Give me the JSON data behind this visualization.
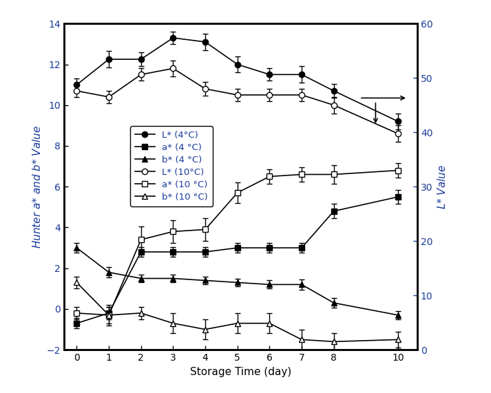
{
  "x_days": [
    0,
    1,
    2,
    3,
    4,
    5,
    6,
    7,
    8,
    10
  ],
  "L4_y": [
    11.0,
    12.25,
    12.25,
    13.3,
    13.1,
    12.0,
    11.5,
    11.5,
    10.7,
    9.2
  ],
  "L4_err": [
    0.3,
    0.4,
    0.35,
    0.3,
    0.4,
    0.4,
    0.3,
    0.4,
    0.35,
    0.4
  ],
  "a4_y": [
    -0.7,
    -0.2,
    2.8,
    2.8,
    2.8,
    3.0,
    3.0,
    3.0,
    4.8,
    5.5
  ],
  "a4_err": [
    0.25,
    0.3,
    0.25,
    0.25,
    0.25,
    0.25,
    0.25,
    0.25,
    0.35,
    0.35
  ],
  "b4_y": [
    3.0,
    1.8,
    1.5,
    1.5,
    1.4,
    1.3,
    1.2,
    1.2,
    0.3,
    -0.3
  ],
  "b4_err": [
    0.25,
    0.25,
    0.2,
    0.2,
    0.2,
    0.2,
    0.2,
    0.25,
    0.25,
    0.2
  ],
  "L10_y": [
    10.7,
    10.4,
    11.5,
    11.8,
    10.8,
    10.5,
    10.5,
    10.5,
    10.0,
    8.6
  ],
  "L10_err": [
    0.3,
    0.3,
    0.3,
    0.4,
    0.35,
    0.3,
    0.3,
    0.3,
    0.4,
    0.4
  ],
  "a10_y": [
    -0.2,
    -0.3,
    3.4,
    3.8,
    3.9,
    5.7,
    6.5,
    6.6,
    6.6,
    6.8
  ],
  "a10_err": [
    0.3,
    0.5,
    0.65,
    0.55,
    0.55,
    0.5,
    0.35,
    0.35,
    0.45,
    0.35
  ],
  "b10_y": [
    1.3,
    -0.3,
    -0.2,
    -0.7,
    -1.0,
    -0.7,
    -0.7,
    -1.5,
    -1.6,
    -1.5
  ],
  "b10_err": [
    0.3,
    0.4,
    0.3,
    0.5,
    0.5,
    0.5,
    0.5,
    0.5,
    0.4,
    0.4
  ],
  "left_ylim": [
    -2,
    14
  ],
  "right_ylim": [
    0,
    60
  ],
  "left_yticks": [
    -2,
    0,
    2,
    4,
    6,
    8,
    10,
    12,
    14
  ],
  "right_yticks": [
    0,
    10,
    20,
    30,
    40,
    50,
    60
  ],
  "xticks": [
    0,
    1,
    2,
    3,
    4,
    5,
    6,
    7,
    8,
    10
  ],
  "xlabel": "Storage Time (day)",
  "ylabel_left": "Hunter $a$* and $b$* Value",
  "ylabel_right": "$L$* Value",
  "label_color": "#1a3a9a",
  "line_color": "black",
  "background": "#ffffff"
}
